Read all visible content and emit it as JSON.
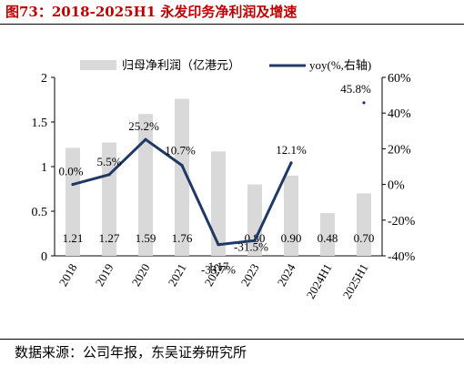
{
  "title": "图73：2018-2025H1 永发印务净利润及增速",
  "source": "数据来源：公司年报，东吴证券研究所",
  "colors": {
    "bar": "#d9d9d9",
    "line": "#1f3864",
    "title": "#c00000"
  },
  "chart_data": {
    "type": "bar",
    "categories": [
      "2018",
      "2019",
      "2020",
      "2021",
      "2022",
      "2023",
      "2024",
      "2024H1",
      "2025H1"
    ],
    "series": [
      {
        "name": "归母净利润（亿港元）",
        "type": "bar",
        "axis": "left",
        "values": [
          1.21,
          1.27,
          1.59,
          1.76,
          1.17,
          0.8,
          0.9,
          0.48,
          0.7
        ],
        "labels": [
          "1.21",
          "1.27",
          "1.59",
          "1.76",
          "1.17",
          "0.80",
          "0.90",
          "0.48",
          "0.70"
        ]
      },
      {
        "name": "yoy(%,右轴)",
        "type": "line",
        "axis": "right",
        "values": [
          0.0,
          5.5,
          25.2,
          10.7,
          -33.7,
          -31.5,
          12.1,
          null,
          45.8
        ],
        "labels": [
          "0.0%",
          "5.5%",
          "25.2%",
          "10.7%",
          "-33.7%",
          "-31.5%",
          "12.1%",
          "",
          "45.8%"
        ]
      }
    ],
    "y_left": {
      "min": 0,
      "max": 2,
      "ticks": [
        "0",
        "0.5",
        "1",
        "1.5",
        "2"
      ]
    },
    "y_right": {
      "min": -40,
      "max": 60,
      "ticks": [
        "-40%",
        "-20%",
        "0%",
        "20%",
        "40%",
        "60%"
      ]
    },
    "legend": "top",
    "grid": false
  }
}
